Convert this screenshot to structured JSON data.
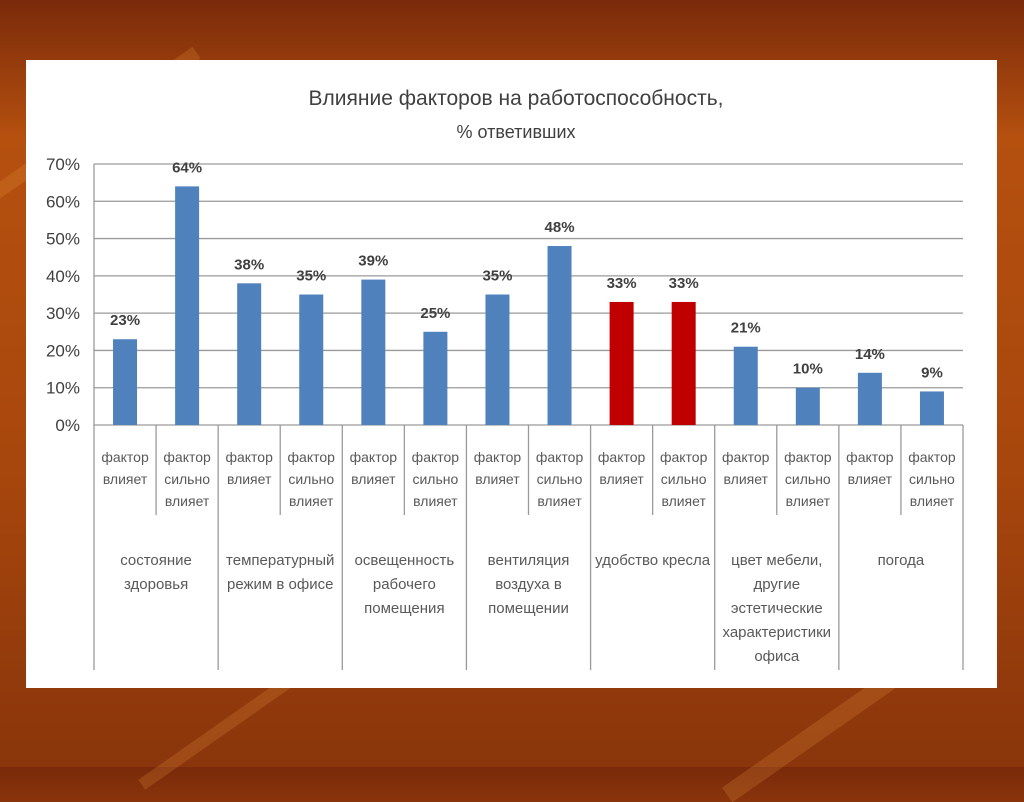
{
  "chart_data": {
    "type": "bar",
    "title": "Влияние факторов на работоспособность,",
    "subtitle": "% ответивших",
    "ylim": [
      0,
      70
    ],
    "yticks": [
      "0%",
      "10%",
      "20%",
      "30%",
      "40%",
      "50%",
      "60%",
      "70%"
    ],
    "grid": true,
    "bars": [
      {
        "label": [
          "фактор",
          "влияет"
        ],
        "value": 23,
        "value_label": "23%",
        "color": "#4f81bd"
      },
      {
        "label": [
          "фактор",
          "сильно",
          "влияет"
        ],
        "value": 64,
        "value_label": "64%",
        "color": "#4f81bd"
      },
      {
        "label": [
          "фактор",
          "влияет"
        ],
        "value": 38,
        "value_label": "38%",
        "color": "#4f81bd"
      },
      {
        "label": [
          "фактор",
          "сильно",
          "влияет"
        ],
        "value": 35,
        "value_label": "35%",
        "color": "#4f81bd"
      },
      {
        "label": [
          "фактор",
          "влияет"
        ],
        "value": 39,
        "value_label": "39%",
        "color": "#4f81bd"
      },
      {
        "label": [
          "фактор",
          "сильно",
          "влияет"
        ],
        "value": 25,
        "value_label": "25%",
        "color": "#4f81bd"
      },
      {
        "label": [
          "фактор",
          "влияет"
        ],
        "value": 35,
        "value_label": "35%",
        "color": "#4f81bd"
      },
      {
        "label": [
          "фактор",
          "сильно",
          "влияет"
        ],
        "value": 48,
        "value_label": "48%",
        "color": "#4f81bd"
      },
      {
        "label": [
          "фактор",
          "влияет"
        ],
        "value": 33,
        "value_label": "33%",
        "color": "#c00000"
      },
      {
        "label": [
          "фактор",
          "сильно",
          "влияет"
        ],
        "value": 33,
        "value_label": "33%",
        "color": "#c00000"
      },
      {
        "label": [
          "фактор",
          "влияет"
        ],
        "value": 21,
        "value_label": "21%",
        "color": "#4f81bd"
      },
      {
        "label": [
          "фактор",
          "сильно",
          "влияет"
        ],
        "value": 10,
        "value_label": "10%",
        "color": "#4f81bd"
      },
      {
        "label": [
          "фактор",
          "влияет"
        ],
        "value": 14,
        "value_label": "14%",
        "color": "#4f81bd"
      },
      {
        "label": [
          "фактор",
          "сильно",
          "влияет"
        ],
        "value": 9,
        "value_label": "9%",
        "color": "#4f81bd"
      }
    ],
    "groups": [
      {
        "label": [
          "состояние",
          "здоровья"
        ]
      },
      {
        "label": [
          "температурный",
          "режим в офисе"
        ]
      },
      {
        "label": [
          "освещенность",
          "рабочего",
          "помещения"
        ]
      },
      {
        "label": [
          "вентиляция",
          "воздуха в",
          "помещении"
        ]
      },
      {
        "label": [
          "удобство кресла"
        ]
      },
      {
        "label": [
          "цвет мебели,",
          "другие",
          "эстетические",
          "характеристики",
          "офиса"
        ]
      },
      {
        "label": [
          "погода"
        ]
      }
    ]
  }
}
